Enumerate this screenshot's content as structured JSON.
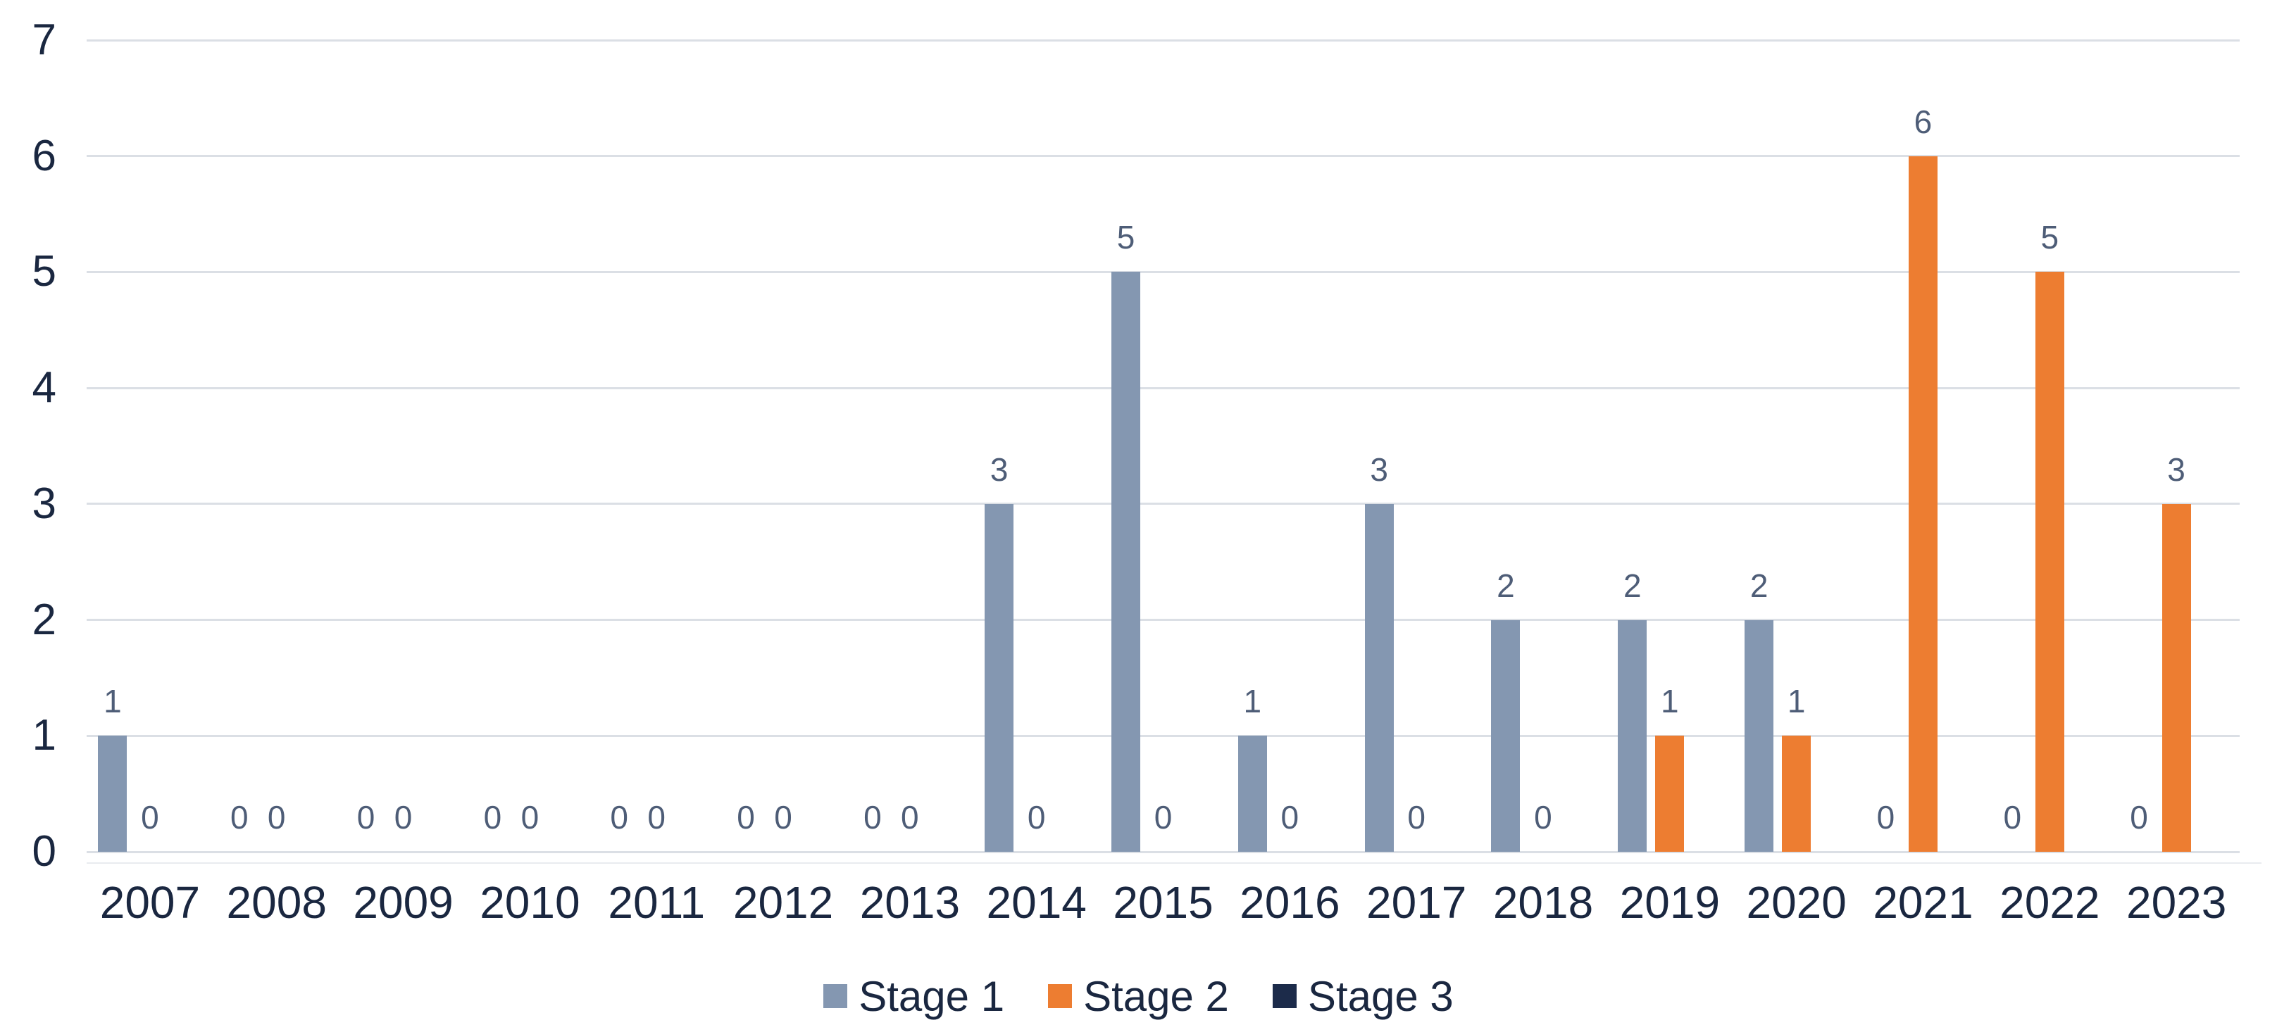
{
  "chart_data": {
    "type": "bar",
    "title": "",
    "xlabel": "",
    "ylabel": "",
    "categories": [
      "2007",
      "2008",
      "2009",
      "2010",
      "2011",
      "2012",
      "2013",
      "2014",
      "2015",
      "2016",
      "2017",
      "2018",
      "2019",
      "2020",
      "2021",
      "2022",
      "2023"
    ],
    "series": [
      {
        "name": "Stage 1",
        "color": "#8497B1",
        "values": [
          1,
          0,
          0,
          0,
          0,
          0,
          0,
          3,
          5,
          1,
          3,
          2,
          2,
          2,
          0,
          0,
          0
        ]
      },
      {
        "name": "Stage 2",
        "color": "#ED7D31",
        "values": [
          0,
          0,
          0,
          0,
          0,
          0,
          0,
          0,
          0,
          0,
          0,
          0,
          1,
          1,
          6,
          5,
          3
        ]
      },
      {
        "name": "Stage 3",
        "color": "#1C2B4A",
        "values": [
          null,
          null,
          null,
          null,
          null,
          null,
          null,
          null,
          null,
          null,
          null,
          null,
          null,
          null,
          null,
          null,
          null
        ]
      }
    ],
    "ylim": [
      0,
      7
    ],
    "yticks": [
      "0",
      "1",
      "2",
      "3",
      "4",
      "5",
      "6",
      "7"
    ],
    "grid": true,
    "legend_position": "bottom",
    "data_labels": "outside-end"
  },
  "colors": {
    "background": "#FFFFFF",
    "gridline": "#DBDFE5",
    "axis_text": "#1A2740",
    "data_label_text": "#4E5D77"
  }
}
